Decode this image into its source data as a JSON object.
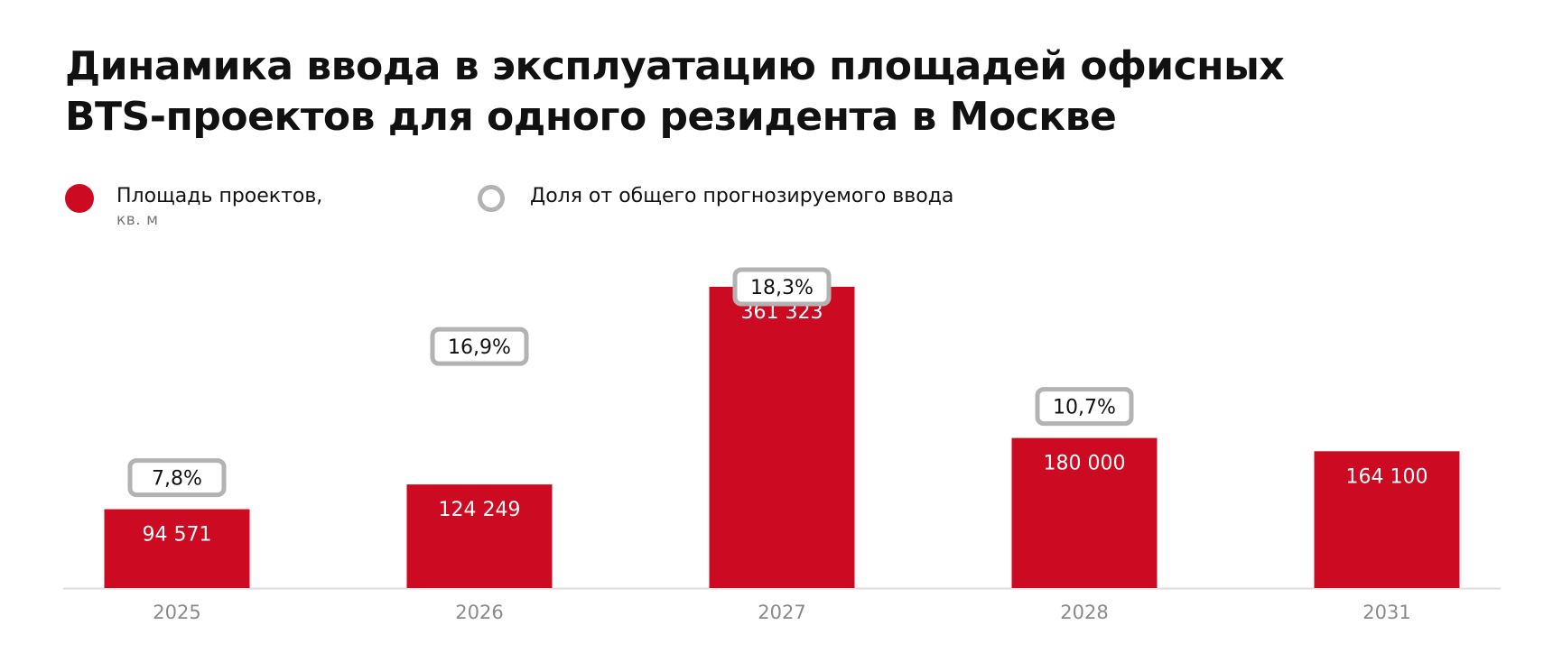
{
  "title": {
    "line1": "Динамика ввода в эксплуатацию площадей офисных",
    "line2": "BTS-проектов для одного резидента в Москве"
  },
  "legend": {
    "area_label": "Площадь проектов,",
    "area_unit": "кв. м",
    "share_label": "Доля от общего прогнозируемого ввода"
  },
  "colors": {
    "bar": "#cc0a22",
    "badge_border": "#b3b3b3",
    "axis": "#dddddd",
    "tick": "#8a8a8a"
  },
  "chart_data": {
    "type": "bar",
    "title": "Динамика ввода в эксплуатацию площадей офисных BTS-проектов для одного резидента в Москве",
    "xlabel": "",
    "ylabel": "",
    "categories": [
      "2025",
      "2026",
      "2027",
      "2028",
      "2031"
    ],
    "series": [
      {
        "name": "Площадь проектов, кв. м",
        "values": [
          94571,
          124249,
          361323,
          180000,
          164100
        ],
        "labels": [
          "94 571",
          "124 249",
          "361 323",
          "180 000",
          "164 100"
        ]
      },
      {
        "name": "Доля от общего прогнозируемого ввода",
        "values": [
          7.8,
          16.9,
          18.3,
          10.7,
          null
        ],
        "labels": [
          "7,8%",
          "16,9%",
          "18,3%",
          "10,7%",
          null
        ]
      }
    ],
    "ylim": [
      0,
      361323
    ],
    "grid": false,
    "legend_position": "top-left"
  }
}
